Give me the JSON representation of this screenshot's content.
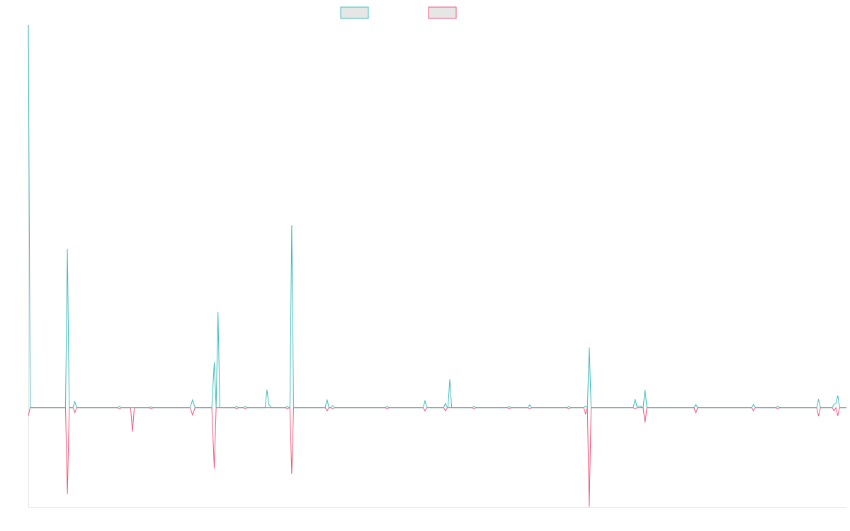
{
  "colors": {
    "series_a": "#3dbcba",
    "series_b": "#f0567a",
    "legend_fill": "#e6e6e6",
    "axis": "#e5e5e5",
    "background": "#ffffff"
  },
  "chart_data": {
    "type": "line",
    "title": "",
    "xlabel": "",
    "ylabel": "",
    "legend": {
      "placement": "top-center",
      "entries": [
        "",
        ""
      ]
    },
    "grid": false,
    "xlim": [
      0,
      132
    ],
    "ylim": [
      -24.5,
      94.5
    ],
    "series": [
      {
        "key": "series_a",
        "color": "#3dbcba",
        "points": [
          [
            0,
            94.5
          ],
          [
            0.3,
            0
          ],
          [
            6,
            0
          ],
          [
            6.3,
            39.2
          ],
          [
            6.6,
            0
          ],
          [
            7.2,
            0
          ],
          [
            7.5,
            1.5
          ],
          [
            7.8,
            0
          ],
          [
            14.4,
            0
          ],
          [
            14.7,
            0.3
          ],
          [
            15,
            0
          ],
          [
            19.5,
            0
          ],
          [
            19.8,
            0.2
          ],
          [
            20.1,
            0
          ],
          [
            26.1,
            0
          ],
          [
            26.5,
            1.9
          ],
          [
            26.9,
            0
          ],
          [
            29.6,
            0
          ],
          [
            30,
            11.2
          ],
          [
            30.3,
            0
          ],
          [
            30.6,
            23.6
          ],
          [
            30.9,
            0
          ],
          [
            33.3,
            0
          ],
          [
            33.6,
            0.3
          ],
          [
            33.9,
            0
          ],
          [
            34.7,
            0
          ],
          [
            35,
            0.3
          ],
          [
            35.3,
            0
          ],
          [
            38.2,
            0
          ],
          [
            38.5,
            4.4
          ],
          [
            38.8,
            0.8
          ],
          [
            39.2,
            0
          ],
          [
            41.5,
            0
          ],
          [
            41.8,
            0.3
          ],
          [
            42.1,
            0
          ],
          [
            42.2,
            0
          ],
          [
            42.5,
            45
          ],
          [
            42.8,
            0
          ],
          [
            47.9,
            0
          ],
          [
            48.2,
            2.0
          ],
          [
            48.5,
            0
          ],
          [
            48.8,
            0
          ],
          [
            49.1,
            0.5
          ],
          [
            49.4,
            0
          ],
          [
            57.6,
            0
          ],
          [
            57.9,
            0.3
          ],
          [
            58.2,
            0
          ],
          [
            63.7,
            0
          ],
          [
            64,
            1.7
          ],
          [
            64.3,
            0
          ],
          [
            67,
            0
          ],
          [
            67.3,
            1.1
          ],
          [
            67.6,
            0
          ],
          [
            67.7,
            0
          ],
          [
            68,
            7.0
          ],
          [
            68.3,
            0
          ],
          [
            71.6,
            0
          ],
          [
            71.9,
            0.3
          ],
          [
            72.2,
            0
          ],
          [
            77.3,
            0
          ],
          [
            77.6,
            0.3
          ],
          [
            77.9,
            0
          ],
          [
            80.6,
            0
          ],
          [
            80.9,
            0.7
          ],
          [
            81.2,
            0
          ],
          [
            86.9,
            0
          ],
          [
            87.2,
            0.3
          ],
          [
            87.5,
            0
          ],
          [
            89.6,
            0
          ],
          [
            89.9,
            0.4
          ],
          [
            90.2,
            0
          ],
          [
            90.2,
            0
          ],
          [
            90.5,
            14.9
          ],
          [
            90.8,
            0
          ],
          [
            97.6,
            0
          ],
          [
            97.9,
            2.1
          ],
          [
            98.2,
            0.3
          ],
          [
            98.8,
            0.4
          ],
          [
            99.1,
            0
          ],
          [
            99.2,
            0
          ],
          [
            99.5,
            4.4
          ],
          [
            99.8,
            0
          ],
          [
            107.4,
            0
          ],
          [
            107.7,
            0.8
          ],
          [
            108,
            0
          ],
          [
            116.7,
            0
          ],
          [
            117,
            0.8
          ],
          [
            117.3,
            0
          ],
          [
            120.6,
            0
          ],
          [
            120.9,
            0.3
          ],
          [
            121.2,
            0
          ],
          [
            127.2,
            0
          ],
          [
            127.5,
            2.1
          ],
          [
            127.8,
            0
          ],
          [
            129.7,
            0
          ],
          [
            130,
            0.9
          ],
          [
            130.3,
            1.0
          ],
          [
            130.6,
            3.0
          ],
          [
            130.9,
            0
          ],
          [
            132,
            0
          ]
        ]
      },
      {
        "key": "series_b",
        "color": "#f0567a",
        "points": [
          [
            0,
            -2.0
          ],
          [
            0.3,
            0
          ],
          [
            6,
            0
          ],
          [
            6.3,
            -21.3
          ],
          [
            6.6,
            0
          ],
          [
            7.2,
            0
          ],
          [
            7.5,
            -1.2
          ],
          [
            7.8,
            0
          ],
          [
            14.4,
            0
          ],
          [
            14.7,
            -0.3
          ],
          [
            15,
            0
          ],
          [
            16.5,
            0
          ],
          [
            16.8,
            -5.9
          ],
          [
            17.1,
            0
          ],
          [
            19.5,
            0
          ],
          [
            19.8,
            -0.3
          ],
          [
            20.1,
            0
          ],
          [
            26.1,
            0
          ],
          [
            26.5,
            -1.8
          ],
          [
            26.9,
            0
          ],
          [
            29.6,
            0
          ],
          [
            30,
            -15
          ],
          [
            30.3,
            0
          ],
          [
            33.3,
            0
          ],
          [
            33.6,
            -0.3
          ],
          [
            33.9,
            0
          ],
          [
            34.7,
            0
          ],
          [
            35,
            -0.3
          ],
          [
            35.3,
            0
          ],
          [
            41.5,
            0
          ],
          [
            41.8,
            -0.3
          ],
          [
            42.1,
            0
          ],
          [
            42.2,
            0
          ],
          [
            42.5,
            -16.3
          ],
          [
            42.8,
            0
          ],
          [
            47.9,
            0
          ],
          [
            48.2,
            -0.8
          ],
          [
            48.5,
            0
          ],
          [
            48.8,
            0
          ],
          [
            49.1,
            -0.3
          ],
          [
            49.4,
            0
          ],
          [
            57.6,
            0
          ],
          [
            57.9,
            -0.3
          ],
          [
            58.2,
            0
          ],
          [
            63.7,
            0
          ],
          [
            64,
            -0.8
          ],
          [
            64.3,
            0
          ],
          [
            67,
            0
          ],
          [
            67.3,
            -0.8
          ],
          [
            67.6,
            0
          ],
          [
            71.6,
            0
          ],
          [
            71.9,
            -0.3
          ],
          [
            72.2,
            0
          ],
          [
            77.3,
            0
          ],
          [
            77.6,
            -0.3
          ],
          [
            77.9,
            0
          ],
          [
            80.6,
            0
          ],
          [
            80.9,
            -0.3
          ],
          [
            81.2,
            0
          ],
          [
            86.9,
            0
          ],
          [
            87.2,
            -0.3
          ],
          [
            87.5,
            0
          ],
          [
            89.6,
            0
          ],
          [
            89.9,
            -1.5
          ],
          [
            90.2,
            0
          ],
          [
            90.2,
            0
          ],
          [
            90.5,
            -24.5
          ],
          [
            90.8,
            0
          ],
          [
            97.6,
            0
          ],
          [
            97.9,
            -0.3
          ],
          [
            98.2,
            0
          ],
          [
            99.2,
            0
          ],
          [
            99.5,
            -3.7
          ],
          [
            99.8,
            0
          ],
          [
            107.4,
            0
          ],
          [
            107.7,
            -1.3
          ],
          [
            108,
            0
          ],
          [
            116.7,
            0
          ],
          [
            117,
            -0.8
          ],
          [
            117.3,
            0
          ],
          [
            120.6,
            0
          ],
          [
            120.9,
            -0.3
          ],
          [
            121.2,
            0
          ],
          [
            127.2,
            0
          ],
          [
            127.5,
            -2.1
          ],
          [
            127.8,
            0
          ],
          [
            129.7,
            0
          ],
          [
            130,
            -0.8
          ],
          [
            130.3,
            0
          ],
          [
            130.6,
            -2.0
          ],
          [
            130.9,
            0
          ],
          [
            132,
            0
          ]
        ]
      }
    ]
  }
}
